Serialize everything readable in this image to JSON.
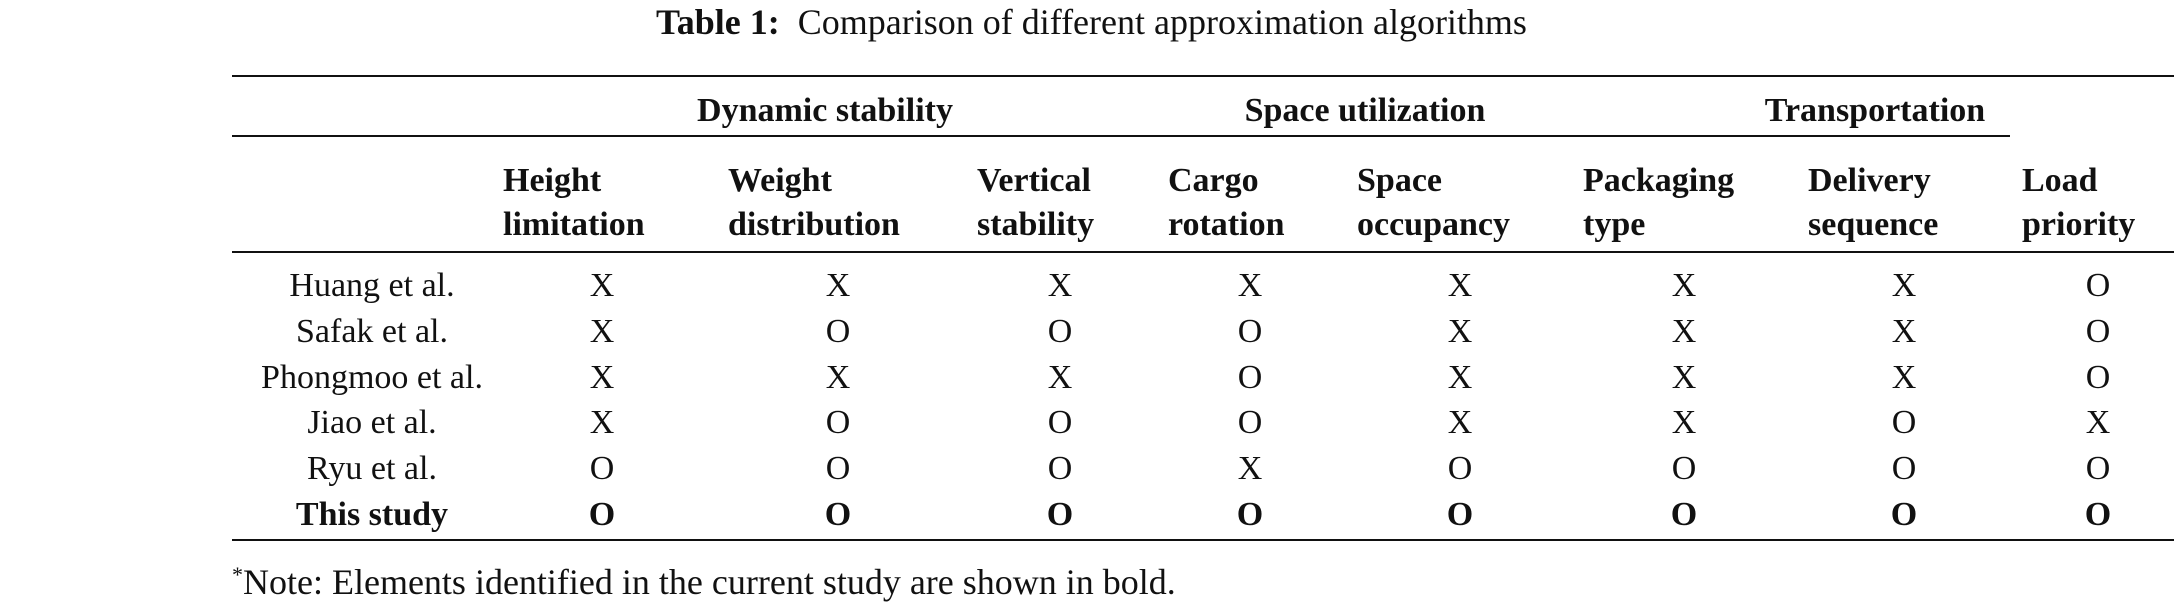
{
  "caption": {
    "label": "Table 1:",
    "text": "Comparison of different approximation algorithms"
  },
  "groups": [
    {
      "label": "Dynamic stability"
    },
    {
      "label": "Space utilization"
    },
    {
      "label": "Transportation"
    }
  ],
  "columns": [
    {
      "line1": "Height",
      "line2": "limitation"
    },
    {
      "line1": "Weight",
      "line2": "distribution"
    },
    {
      "line1": "Vertical",
      "line2": "stability"
    },
    {
      "line1": "Cargo",
      "line2": "rotation"
    },
    {
      "line1": "Space",
      "line2": "occupancy"
    },
    {
      "line1": "Packaging",
      "line2": "type"
    },
    {
      "line1": "Delivery",
      "line2": "sequence"
    },
    {
      "line1": "Load",
      "line2": "priority"
    }
  ],
  "rows": [
    {
      "name": "Huang et al.",
      "bold": false,
      "values": [
        "X",
        "X",
        "X",
        "X",
        "X",
        "X",
        "X",
        "O"
      ]
    },
    {
      "name": "Safak et al.",
      "bold": false,
      "values": [
        "X",
        "O",
        "O",
        "O",
        "X",
        "X",
        "X",
        "O"
      ]
    },
    {
      "name": "Phongmoo et al.",
      "bold": false,
      "values": [
        "X",
        "X",
        "X",
        "O",
        "X",
        "X",
        "X",
        "O"
      ]
    },
    {
      "name": "Jiao et al.",
      "bold": false,
      "values": [
        "X",
        "O",
        "O",
        "O",
        "X",
        "X",
        "O",
        "X"
      ]
    },
    {
      "name": "Ryu et al.",
      "bold": false,
      "values": [
        "O",
        "O",
        "O",
        "X",
        "O",
        "O",
        "O",
        "O"
      ]
    },
    {
      "name": "This study",
      "bold": true,
      "values": [
        "O",
        "O",
        "O",
        "O",
        "O",
        "O",
        "O",
        "O"
      ]
    }
  ],
  "note": {
    "marker": "*",
    "text": "Note: Elements identified in the current study are shown in bold."
  }
}
